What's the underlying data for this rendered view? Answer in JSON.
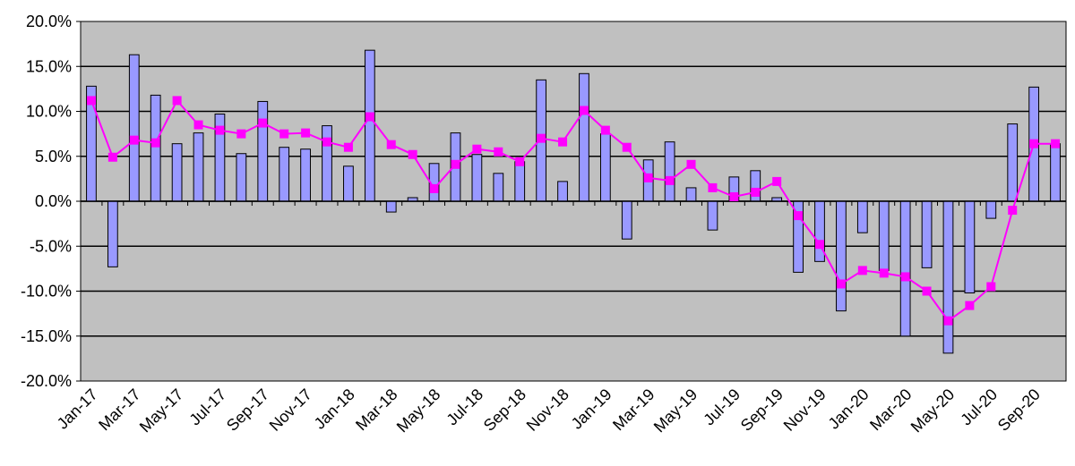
{
  "chart_data": {
    "type": "bar+line",
    "title": "",
    "xlabel": "",
    "ylabel": "",
    "ylim": [
      -0.2,
      0.2
    ],
    "y_ticks": [
      "20.0%",
      "15.0%",
      "10.0%",
      "5.0%",
      "0.0%",
      "-5.0%",
      "-10.0%",
      "-15.0%",
      "-20.0%"
    ],
    "y_tick_values": [
      0.2,
      0.15,
      0.1,
      0.05,
      0,
      -0.05,
      -0.1,
      -0.15,
      -0.2
    ],
    "categories": [
      "Jan-17",
      "Feb-17",
      "Mar-17",
      "Apr-17",
      "May-17",
      "Jun-17",
      "Jul-17",
      "Aug-17",
      "Sep-17",
      "Oct-17",
      "Nov-17",
      "Dec-17",
      "Jan-18",
      "Feb-18",
      "Mar-18",
      "Apr-18",
      "May-18",
      "Jun-18",
      "Jul-18",
      "Aug-18",
      "Sep-18",
      "Oct-18",
      "Nov-18",
      "Dec-18",
      "Jan-19",
      "Feb-19",
      "Mar-19",
      "Apr-19",
      "May-19",
      "Jun-19",
      "Jul-19",
      "Aug-19",
      "Sep-19",
      "Oct-19",
      "Nov-19",
      "Dec-19",
      "Jan-20",
      "Feb-20",
      "Mar-20",
      "Apr-20",
      "May-20",
      "Jun-20",
      "Jul-20",
      "Aug-20",
      "Sep-20",
      "Oct-20"
    ],
    "x_tick_labels": [
      "Jan-17",
      "Mar-17",
      "May-17",
      "Jul-17",
      "Sep-17",
      "Nov-17",
      "Jan-18",
      "Mar-18",
      "May-18",
      "Jul-18",
      "Sep-18",
      "Nov-18",
      "Jan-19",
      "Mar-19",
      "May-19",
      "Jul-19",
      "Sep-19",
      "Nov-19",
      "Jan-20",
      "Mar-20",
      "May-20",
      "Jul-20",
      "Sep-20"
    ],
    "grid": true,
    "legend": "none",
    "colors": {
      "bar_fill": "#9999ff",
      "bar_stroke": "#000000",
      "line": "#ff00ff",
      "plot_bg": "#c0c0c0",
      "grid": "#000000"
    },
    "series": [
      {
        "type": "bar",
        "values": [
          0.128,
          -0.073,
          0.163,
          0.118,
          0.064,
          0.076,
          0.097,
          0.053,
          0.111,
          0.06,
          0.058,
          0.084,
          0.039,
          0.168,
          -0.012,
          0.004,
          0.042,
          0.076,
          0.052,
          0.031,
          0.044,
          0.135,
          0.022,
          0.142,
          0.075,
          -0.042,
          0.046,
          0.066,
          0.015,
          -0.032,
          0.027,
          0.034,
          0.004,
          -0.079,
          -0.067,
          -0.122,
          -0.035,
          -0.077,
          -0.15,
          -0.074,
          -0.169,
          -0.102,
          -0.019,
          0.086,
          0.127,
          0.064
        ]
      },
      {
        "type": "line",
        "values": [
          0.112,
          0.049,
          0.068,
          0.065,
          0.112,
          0.085,
          0.079,
          0.075,
          0.087,
          0.075,
          0.076,
          0.066,
          0.06,
          0.094,
          0.063,
          0.052,
          0.014,
          0.041,
          0.058,
          0.055,
          0.044,
          0.07,
          0.066,
          0.101,
          0.079,
          0.06,
          0.026,
          0.023,
          0.041,
          0.015,
          0.005,
          0.01,
          0.022,
          -0.016,
          -0.048,
          -0.092,
          -0.077,
          -0.08,
          -0.084,
          -0.1,
          -0.133,
          -0.116,
          -0.095,
          -0.01,
          0.064,
          0.064
        ]
      }
    ]
  }
}
